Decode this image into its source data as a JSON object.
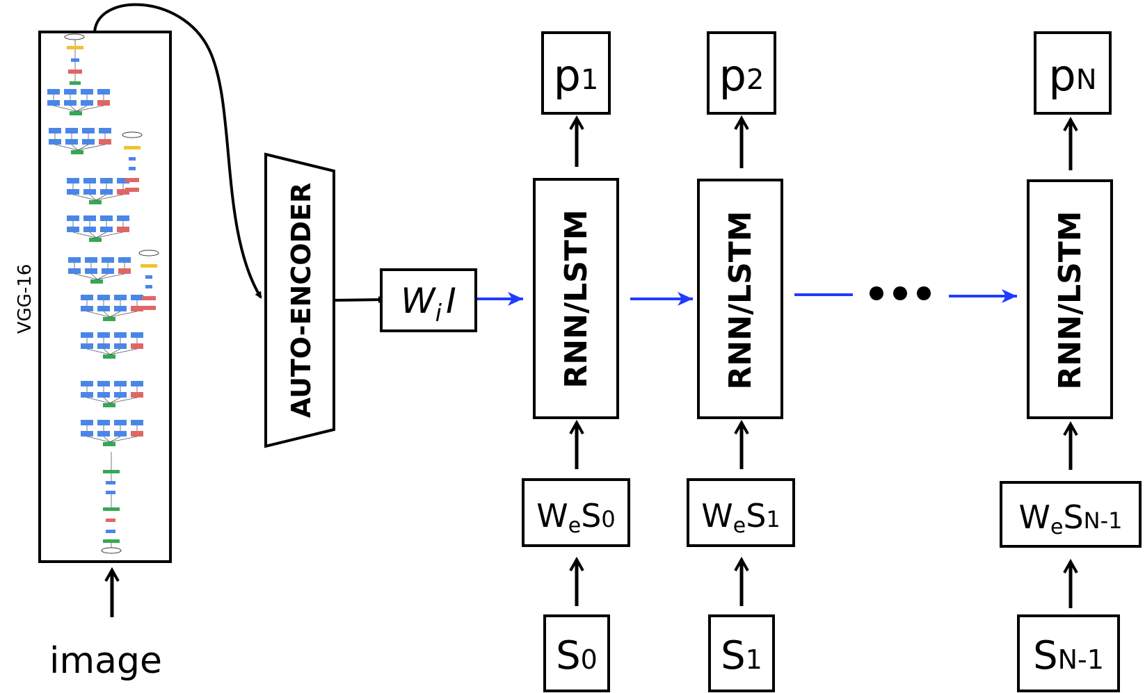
{
  "vgg_label": "VGG-16",
  "image_label": "image",
  "autoencoder_label": "AUTO-ENCODER",
  "wi_box": {
    "base": "W",
    "sub": "i",
    "after": "I"
  },
  "columns": [
    {
      "cell_label": "RNN/LSTM",
      "output": {
        "base": "p",
        "sub": "1"
      },
      "embed": {
        "base": "W",
        "e": "e",
        "s": "S",
        "sub": "0"
      },
      "input": {
        "base": "S",
        "sub": "0"
      }
    },
    {
      "cell_label": "RNN/LSTM",
      "output": {
        "base": "p",
        "sub": "2"
      },
      "embed": {
        "base": "W",
        "e": "e",
        "s": "S",
        "sub": "1"
      },
      "input": {
        "base": "S",
        "sub": "1"
      }
    },
    {
      "cell_label": "RNN/LSTM",
      "output": {
        "base": "p",
        "sub": "N"
      },
      "embed": {
        "base": "W",
        "e": "e",
        "s": "S",
        "sub": "N-1"
      },
      "input": {
        "base": "S",
        "sub": "N-1"
      }
    }
  ],
  "colors": {
    "line": "#000000",
    "arrow_blue": "#1f3cff",
    "vgg_blue": "#4a86e8",
    "vgg_green": "#34a853",
    "vgg_red": "#e06666",
    "vgg_yellow": "#f1c232"
  }
}
